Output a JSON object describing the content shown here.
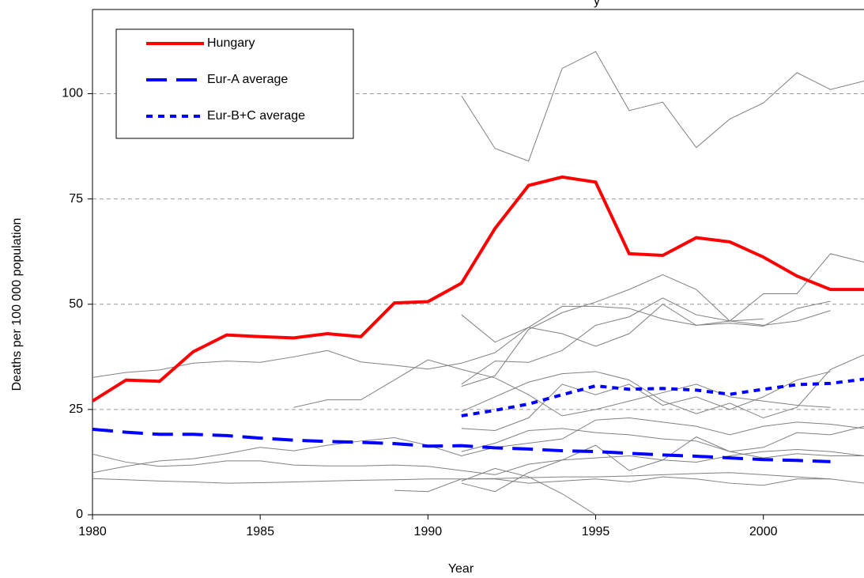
{
  "chart_data": {
    "type": "line",
    "title": "y",
    "x_label": "Year",
    "y_label": "Deaths per 100 000 population",
    "x": [
      1980,
      1981,
      1982,
      1983,
      1984,
      1985,
      1986,
      1987,
      1988,
      1989,
      1990,
      1991,
      1992,
      1993,
      1994,
      1995,
      1996,
      1997,
      1998,
      1999,
      2000,
      2001,
      2002,
      2003
    ],
    "xlim": [
      1980,
      2003
    ],
    "xticks": [
      1980,
      1985,
      1990,
      1995,
      2000
    ],
    "ylim": [
      0,
      120
    ],
    "yticks": [
      0,
      25,
      50,
      75,
      100
    ],
    "grid": true,
    "legend": "top-left",
    "series": [
      {
        "color": "#808080",
        "style": "solid",
        "values": [
          null,
          null,
          null,
          null,
          null,
          null,
          null,
          null,
          null,
          null,
          null,
          99.5,
          87,
          84,
          106,
          110,
          96,
          98,
          87.2,
          94,
          97.8,
          105,
          101,
          103
        ]
      },
      {
        "color": "#808080",
        "style": "solid",
        "values": [
          32.6,
          33.8,
          34.4,
          36,
          36.5,
          36.2,
          37.5,
          39,
          36.3,
          35.5,
          34.6,
          36,
          38.5,
          44.5,
          49.5,
          49.5,
          49,
          46.5,
          45,
          45.5,
          44.8,
          49,
          50.7,
          null
        ]
      },
      {
        "color": "#808080",
        "style": "solid",
        "values": [
          14.4,
          12.5,
          11.5,
          11.8,
          12.8,
          12.8,
          11.8,
          11.6,
          11.6,
          11.8,
          11.5,
          10.5,
          9.5,
          12,
          13,
          13.5,
          14,
          13,
          12.5,
          14,
          15,
          15.5,
          15,
          14
        ]
      },
      {
        "color": "#808080",
        "style": "solid",
        "values": [
          8.6,
          8.3,
          8,
          7.8,
          7.5,
          7.6,
          7.8,
          8,
          8.2,
          8.3,
          8.5,
          8.5,
          8.6,
          8.8,
          9,
          9,
          9.2,
          9.5,
          9.8,
          10,
          9.5,
          9,
          8.5,
          7.5
        ]
      },
      {
        "color": "#808080",
        "style": "solid",
        "values": [
          10,
          11.5,
          12.8,
          13.3,
          14.5,
          16,
          15.2,
          16.5,
          17.5,
          18.3,
          16.5,
          14,
          16,
          17,
          18,
          22.5,
          23,
          22,
          21,
          19,
          21,
          22,
          21.5,
          20.5
        ]
      },
      {
        "color": "#808080",
        "style": "solid",
        "values": [
          null,
          null,
          null,
          null,
          null,
          null,
          25.5,
          27.3,
          27.3,
          32,
          36.8,
          34.5,
          32.5,
          28.5,
          23.5,
          25,
          27,
          29,
          31,
          28,
          27,
          26,
          25.5,
          null
        ]
      },
      {
        "color": "#808080",
        "style": "solid",
        "values": [
          null,
          null,
          null,
          null,
          null,
          null,
          null,
          null,
          null,
          null,
          null,
          47.5,
          41,
          44.5,
          43,
          40,
          43,
          50,
          45,
          46,
          46.5,
          null,
          null,
          null
        ]
      },
      {
        "color": "#808080",
        "style": "solid",
        "values": [
          null,
          null,
          null,
          null,
          null,
          null,
          null,
          null,
          null,
          null,
          null,
          30.5,
          33,
          44,
          48,
          50.5,
          53.5,
          57,
          53.5,
          46,
          52.5,
          52.5,
          62,
          60
        ]
      },
      {
        "color": "#808080",
        "style": "solid",
        "values": [
          null,
          null,
          null,
          null,
          null,
          null,
          null,
          null,
          null,
          null,
          null,
          31,
          36.5,
          36.2,
          39,
          45,
          47,
          51.5,
          47.5,
          46,
          45,
          46,
          48.5,
          null
        ]
      },
      {
        "color": "#808080",
        "style": "solid",
        "values": [
          null,
          null,
          null,
          null,
          null,
          null,
          null,
          null,
          null,
          null,
          null,
          24.5,
          28,
          31.5,
          33.5,
          34,
          32,
          27,
          24,
          26.5,
          23,
          25.5,
          34.5,
          38
        ]
      },
      {
        "color": "#808080",
        "style": "solid",
        "values": [
          null,
          null,
          null,
          null,
          null,
          null,
          null,
          null,
          null,
          null,
          null,
          15,
          17,
          20,
          20.5,
          19.5,
          19,
          18,
          17.5,
          15,
          16,
          19.5,
          19,
          21
        ]
      },
      {
        "color": "#808080",
        "style": "solid",
        "values": [
          null,
          null,
          null,
          null,
          null,
          null,
          null,
          null,
          null,
          null,
          null,
          7.5,
          5.5,
          10,
          13,
          16.5,
          10.5,
          13,
          18.5,
          15,
          13.5,
          14.5,
          14,
          14
        ]
      },
      {
        "color": "#808080",
        "style": "solid",
        "values": [
          null,
          null,
          null,
          null,
          null,
          null,
          null,
          null,
          null,
          null,
          null,
          8,
          11,
          9,
          5,
          0,
          null,
          null,
          null,
          null,
          null,
          null,
          null,
          null
        ]
      },
      {
        "color": "#808080",
        "style": "solid",
        "values": [
          null,
          null,
          null,
          null,
          null,
          null,
          null,
          null,
          null,
          5.8,
          5.5,
          8.5,
          8.5,
          7.5,
          8,
          8.5,
          7.8,
          9,
          8.5,
          7.5,
          7,
          8.5,
          8.5,
          null
        ]
      },
      {
        "color": "#808080",
        "style": "solid",
        "values": [
          null,
          null,
          null,
          null,
          null,
          null,
          null,
          null,
          null,
          null,
          null,
          20.5,
          20,
          23,
          31,
          28.5,
          31,
          26,
          28,
          25,
          28,
          32,
          34,
          null
        ]
      },
      {
        "name": "Hungary",
        "color": "#ff0000",
        "style": "solid",
        "values": [
          27,
          32,
          31.7,
          38.7,
          42.7,
          42.3,
          42,
          43,
          42.3,
          50.3,
          50.6,
          55,
          68,
          78.2,
          80.2,
          79,
          62,
          61.6,
          65.8,
          64.8,
          61.2,
          56.7,
          53.5,
          53.5
        ]
      },
      {
        "name": "Eur-A average",
        "color": "#0000ff",
        "style": "dashed",
        "values": [
          20.3,
          19.6,
          19.1,
          19.1,
          18.8,
          18.2,
          17.7,
          17.4,
          17.2,
          16.9,
          16.3,
          16.4,
          15.9,
          15.6,
          15.2,
          15,
          14.6,
          14.2,
          13.9,
          13.5,
          13.1,
          12.9,
          12.6,
          null
        ]
      },
      {
        "name": "Eur-B+C average",
        "color": "#0000ff",
        "style": "dotted",
        "values": [
          null,
          null,
          null,
          null,
          null,
          null,
          null,
          null,
          null,
          null,
          null,
          23.5,
          24.8,
          26.3,
          28.5,
          30.6,
          29.8,
          30,
          29.6,
          28.6,
          29.8,
          30.9,
          31.2,
          32.2
        ]
      }
    ]
  }
}
